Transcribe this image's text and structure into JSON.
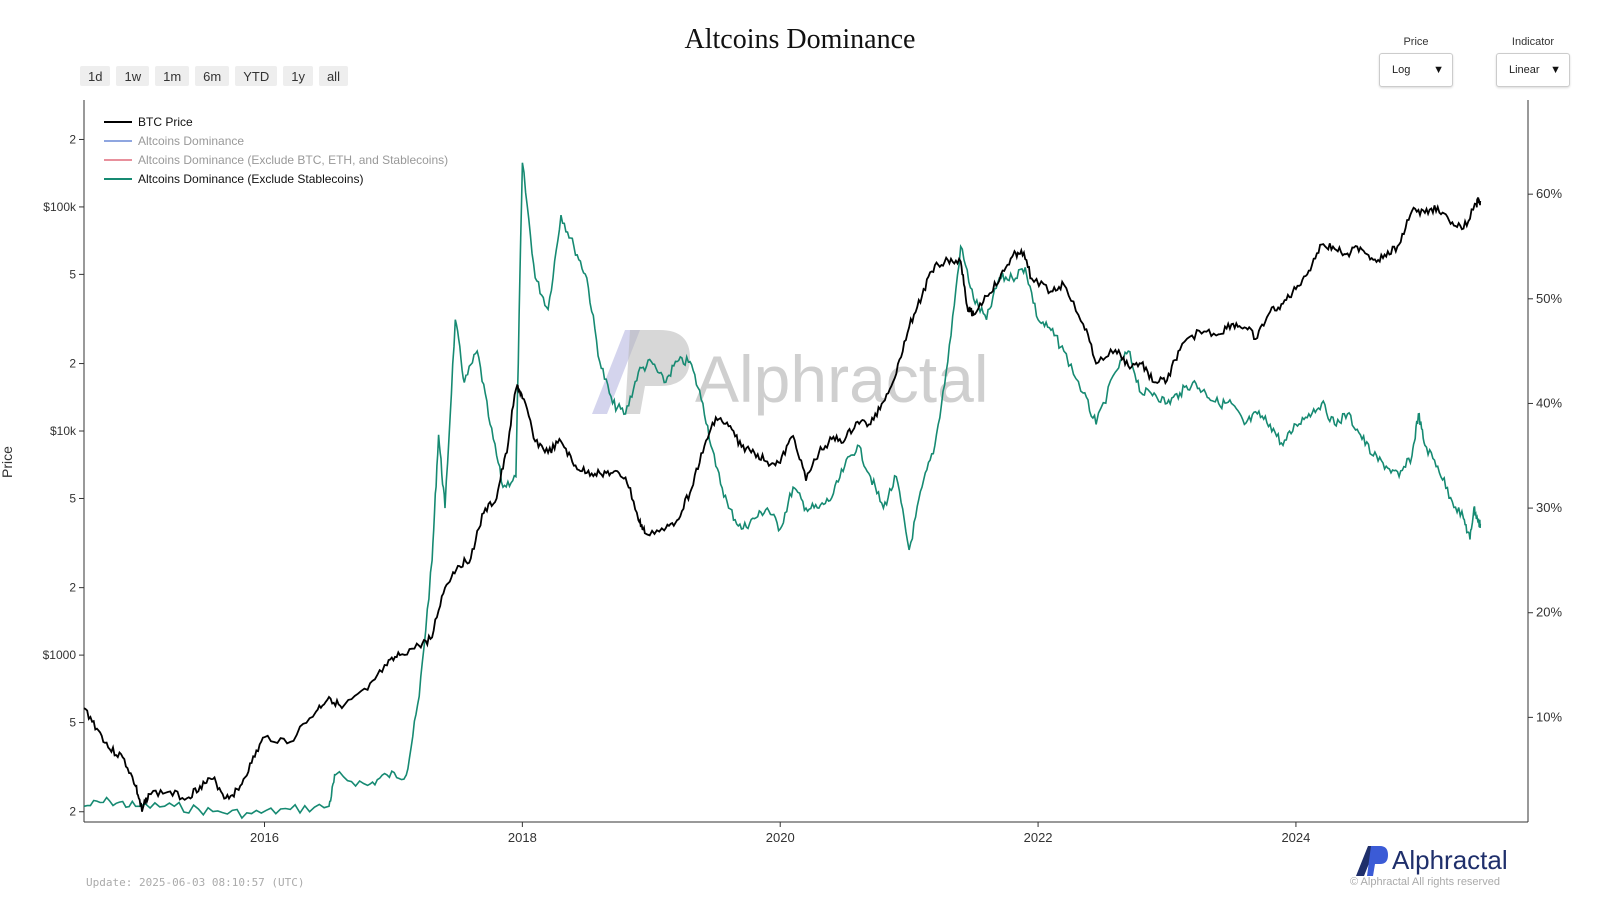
{
  "title": "Altcoins Dominance",
  "range_buttons": [
    "1d",
    "1w",
    "1m",
    "6m",
    "YTD",
    "1y",
    "all"
  ],
  "price_control": {
    "label": "Price",
    "value": "Log"
  },
  "indicator_control": {
    "label": "Indicator",
    "value": "Linear"
  },
  "watermark": "Alphractal",
  "footer": {
    "update": "Update: 2025-06-03 08:10:57 (UTC)",
    "brand": "Alphractal",
    "copyright": "© Alphractal All rights reserved"
  },
  "colors": {
    "btc": "#000000",
    "alt_dominance": "#8fa6e0",
    "alt_ex_btc_eth_stable": "#e8909c",
    "alt_ex_stable": "#168a72",
    "brand": "#1f2f6b"
  },
  "chart_data": {
    "type": "line",
    "ylabel": "Price",
    "y_scale": "log",
    "y_left_ticks": [
      "2",
      "$100k",
      "5",
      "2",
      "$10k",
      "5",
      "2",
      "$1000",
      "5",
      "2"
    ],
    "y_right_ticks": [
      "60%",
      "50%",
      "40%",
      "30%",
      "20%",
      "10%"
    ],
    "x_ticks": [
      "2016",
      "2018",
      "2020",
      "2022",
      "2024"
    ],
    "legend": [
      {
        "name": "BTC Price",
        "active": true
      },
      {
        "name": "Altcoins Dominance",
        "active": false
      },
      {
        "name": "Altcoins Dominance (Exclude BTC, ETH, and Stablecoins)",
        "active": false
      },
      {
        "name": "Altcoins Dominance (Exclude Stablecoins)",
        "active": true
      }
    ],
    "xlim": [
      2014.6,
      2025.8
    ],
    "ylim_left": [
      180,
      300000
    ],
    "ylim_right": [
      0,
      69
    ],
    "series": [
      {
        "name": "BTC Price",
        "axis": "left",
        "points": [
          [
            2014.6,
            580
          ],
          [
            2014.7,
            470
          ],
          [
            2014.8,
            380
          ],
          [
            2014.9,
            350
          ],
          [
            2015.0,
            260
          ],
          [
            2015.05,
            200
          ],
          [
            2015.1,
            240
          ],
          [
            2015.25,
            245
          ],
          [
            2015.4,
            230
          ],
          [
            2015.5,
            260
          ],
          [
            2015.6,
            280
          ],
          [
            2015.7,
            230
          ],
          [
            2015.8,
            250
          ],
          [
            2015.9,
            330
          ],
          [
            2016.0,
            430
          ],
          [
            2016.2,
            410
          ],
          [
            2016.4,
            560
          ],
          [
            2016.5,
            650
          ],
          [
            2016.6,
            580
          ],
          [
            2016.8,
            700
          ],
          [
            2016.95,
            900
          ],
          [
            2017.05,
            1000
          ],
          [
            2017.2,
            1100
          ],
          [
            2017.3,
            1200
          ],
          [
            2017.4,
            2000
          ],
          [
            2017.5,
            2500
          ],
          [
            2017.6,
            2700
          ],
          [
            2017.7,
            4300
          ],
          [
            2017.8,
            5000
          ],
          [
            2017.88,
            8000
          ],
          [
            2017.96,
            16000
          ],
          [
            2018.0,
            14000
          ],
          [
            2018.1,
            9000
          ],
          [
            2018.2,
            8000
          ],
          [
            2018.3,
            9000
          ],
          [
            2018.4,
            7000
          ],
          [
            2018.5,
            6500
          ],
          [
            2018.6,
            6500
          ],
          [
            2018.7,
            6500
          ],
          [
            2018.8,
            6200
          ],
          [
            2018.9,
            4000
          ],
          [
            2018.95,
            3500
          ],
          [
            2019.1,
            3600
          ],
          [
            2019.2,
            4000
          ],
          [
            2019.3,
            5300
          ],
          [
            2019.4,
            8000
          ],
          [
            2019.5,
            11500
          ],
          [
            2019.6,
            10500
          ],
          [
            2019.7,
            8500
          ],
          [
            2019.8,
            8000
          ],
          [
            2019.9,
            7300
          ],
          [
            2020.0,
            7200
          ],
          [
            2020.1,
            9500
          ],
          [
            2020.2,
            6000
          ],
          [
            2020.3,
            8000
          ],
          [
            2020.4,
            9200
          ],
          [
            2020.5,
            9100
          ],
          [
            2020.6,
            11000
          ],
          [
            2020.7,
            10700
          ],
          [
            2020.8,
            13500
          ],
          [
            2020.9,
            18000
          ],
          [
            2021.0,
            29000
          ],
          [
            2021.1,
            40000
          ],
          [
            2021.2,
            55000
          ],
          [
            2021.3,
            58000
          ],
          [
            2021.4,
            57000
          ],
          [
            2021.45,
            36000
          ],
          [
            2021.5,
            33000
          ],
          [
            2021.6,
            40000
          ],
          [
            2021.7,
            47000
          ],
          [
            2021.8,
            60000
          ],
          [
            2021.87,
            64000
          ],
          [
            2021.95,
            48000
          ],
          [
            2022.1,
            42000
          ],
          [
            2022.2,
            45000
          ],
          [
            2022.35,
            30000
          ],
          [
            2022.45,
            20000
          ],
          [
            2022.6,
            23000
          ],
          [
            2022.7,
            19500
          ],
          [
            2022.8,
            20000
          ],
          [
            2022.9,
            16500
          ],
          [
            2023.0,
            16800
          ],
          [
            2023.1,
            23000
          ],
          [
            2023.25,
            28000
          ],
          [
            2023.4,
            27000
          ],
          [
            2023.5,
            30000
          ],
          [
            2023.6,
            29000
          ],
          [
            2023.7,
            26000
          ],
          [
            2023.8,
            34000
          ],
          [
            2023.9,
            37000
          ],
          [
            2024.0,
            43000
          ],
          [
            2024.1,
            52000
          ],
          [
            2024.2,
            68000
          ],
          [
            2024.3,
            65000
          ],
          [
            2024.4,
            62000
          ],
          [
            2024.5,
            66000
          ],
          [
            2024.6,
            58000
          ],
          [
            2024.7,
            60000
          ],
          [
            2024.8,
            68000
          ],
          [
            2024.9,
            96000
          ],
          [
            2025.0,
            94000
          ],
          [
            2025.1,
            100000
          ],
          [
            2025.2,
            84000
          ],
          [
            2025.3,
            80000
          ],
          [
            2025.4,
            103000
          ],
          [
            2025.42,
            108000
          ],
          [
            2025.43,
            105000
          ]
        ]
      },
      {
        "name": "Altcoins Dominance (Exclude Stablecoins)",
        "axis": "right",
        "points": [
          [
            2014.6,
            1.5
          ],
          [
            2014.8,
            2.0
          ],
          [
            2015.0,
            1.5
          ],
          [
            2015.3,
            1.5
          ],
          [
            2015.6,
            1.0
          ],
          [
            2015.9,
            0.8
          ],
          [
            2016.2,
            1.2
          ],
          [
            2016.5,
            1.5
          ],
          [
            2016.55,
            4.5
          ],
          [
            2016.8,
            3.5
          ],
          [
            2016.95,
            4.5
          ],
          [
            2017.1,
            4.5
          ],
          [
            2017.2,
            12.0
          ],
          [
            2017.3,
            25.0
          ],
          [
            2017.35,
            37.0
          ],
          [
            2017.4,
            30.0
          ],
          [
            2017.48,
            48.0
          ],
          [
            2017.55,
            42.0
          ],
          [
            2017.65,
            45.0
          ],
          [
            2017.75,
            38.0
          ],
          [
            2017.85,
            32.0
          ],
          [
            2017.95,
            33.0
          ],
          [
            2018.0,
            63.0
          ],
          [
            2018.1,
            52.0
          ],
          [
            2018.2,
            49.0
          ],
          [
            2018.3,
            58.0
          ],
          [
            2018.4,
            55.0
          ],
          [
            2018.5,
            52.0
          ],
          [
            2018.6,
            44.0
          ],
          [
            2018.7,
            40.0
          ],
          [
            2018.8,
            39.0
          ],
          [
            2018.9,
            43.0
          ],
          [
            2019.0,
            44.0
          ],
          [
            2019.1,
            42.0
          ],
          [
            2019.2,
            44.0
          ],
          [
            2019.3,
            44.0
          ],
          [
            2019.4,
            40.0
          ],
          [
            2019.5,
            34.0
          ],
          [
            2019.6,
            30.0
          ],
          [
            2019.7,
            28.0
          ],
          [
            2019.8,
            29.0
          ],
          [
            2019.9,
            30.0
          ],
          [
            2020.0,
            28.0
          ],
          [
            2020.1,
            32.0
          ],
          [
            2020.2,
            30.0
          ],
          [
            2020.3,
            30.0
          ],
          [
            2020.4,
            31.0
          ],
          [
            2020.5,
            34.0
          ],
          [
            2020.6,
            36.0
          ],
          [
            2020.7,
            33.0
          ],
          [
            2020.8,
            30.0
          ],
          [
            2020.9,
            33.0
          ],
          [
            2021.0,
            26.0
          ],
          [
            2021.1,
            32.0
          ],
          [
            2021.2,
            36.0
          ],
          [
            2021.3,
            44.0
          ],
          [
            2021.4,
            55.0
          ],
          [
            2021.5,
            50.0
          ],
          [
            2021.6,
            48.0
          ],
          [
            2021.7,
            52.0
          ],
          [
            2021.8,
            52.0
          ],
          [
            2021.9,
            53.0
          ],
          [
            2022.0,
            48.0
          ],
          [
            2022.1,
            47.0
          ],
          [
            2022.2,
            45.0
          ],
          [
            2022.35,
            41.0
          ],
          [
            2022.45,
            38.0
          ],
          [
            2022.6,
            43.0
          ],
          [
            2022.7,
            45.0
          ],
          [
            2022.8,
            41.0
          ],
          [
            2022.9,
            41.0
          ],
          [
            2023.0,
            40.0
          ],
          [
            2023.1,
            41.0
          ],
          [
            2023.2,
            42.0
          ],
          [
            2023.3,
            41.0
          ],
          [
            2023.4,
            40.0
          ],
          [
            2023.5,
            40.0
          ],
          [
            2023.6,
            38.0
          ],
          [
            2023.7,
            39.0
          ],
          [
            2023.8,
            38.0
          ],
          [
            2023.9,
            36.0
          ],
          [
            2024.0,
            38.0
          ],
          [
            2024.1,
            39.0
          ],
          [
            2024.2,
            40.0
          ],
          [
            2024.3,
            38.0
          ],
          [
            2024.4,
            39.0
          ],
          [
            2024.5,
            37.0
          ],
          [
            2024.6,
            35.0
          ],
          [
            2024.7,
            34.0
          ],
          [
            2024.8,
            33.0
          ],
          [
            2024.9,
            35.0
          ],
          [
            2024.95,
            39.0
          ],
          [
            2025.0,
            36.0
          ],
          [
            2025.1,
            34.0
          ],
          [
            2025.2,
            31.0
          ],
          [
            2025.3,
            29.0
          ],
          [
            2025.35,
            27.0
          ],
          [
            2025.38,
            30.0
          ],
          [
            2025.42,
            28.5
          ],
          [
            2025.43,
            28.5
          ]
        ]
      }
    ]
  }
}
